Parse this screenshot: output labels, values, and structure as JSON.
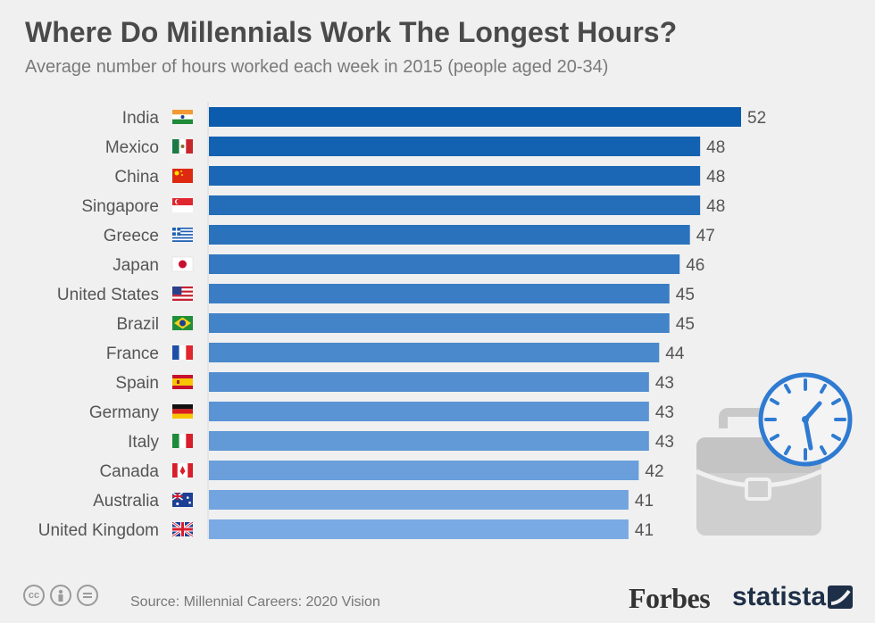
{
  "title": "Where Do Millennials Work The Longest Hours?",
  "subtitle": "Average number of hours worked each week in 2015 (people aged 20-34)",
  "chart_data": {
    "type": "bar",
    "orientation": "horizontal",
    "categories": [
      "India",
      "Mexico",
      "China",
      "Singapore",
      "Greece",
      "Japan",
      "United States",
      "Brazil",
      "France",
      "Spain",
      "Germany",
      "Italy",
      "Canada",
      "Australia",
      "United Kingdom"
    ],
    "values": [
      52,
      48,
      48,
      48,
      47,
      46,
      45,
      45,
      44,
      43,
      43,
      43,
      42,
      41,
      41
    ],
    "flags": [
      "india-flag",
      "mexico-flag",
      "china-flag",
      "singapore-flag",
      "greece-flag",
      "japan-flag",
      "united-states-flag",
      "brazil-flag",
      "france-flag",
      "spain-flag",
      "germany-flag",
      "italy-flag",
      "canada-flag",
      "australia-flag",
      "united-kingdom-flag"
    ],
    "colors": {
      "bar_dark": "#0b5cad",
      "bar_light": "#7aaae3",
      "label": "#555555"
    },
    "xlim": [
      0,
      52
    ],
    "grid": false,
    "legend": "none"
  },
  "footer": {
    "source": "Source: Millennial Careers: 2020 Vision",
    "brand1": "Forbes",
    "brand2": "statista",
    "license_icons": [
      "cc",
      "by",
      "nd"
    ]
  }
}
